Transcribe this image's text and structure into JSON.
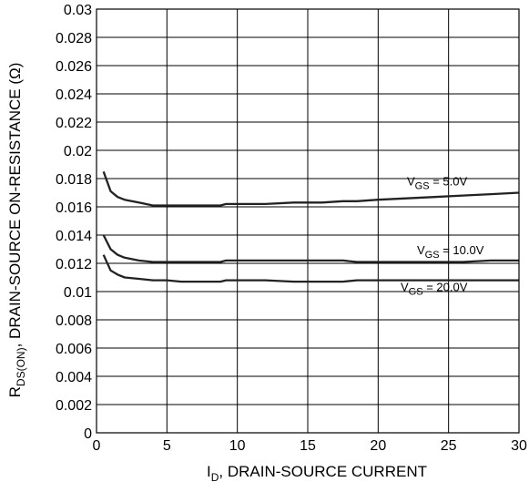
{
  "chart_data": {
    "type": "line",
    "xlabel": {
      "main": "I",
      "sub": "D",
      "rest": ", DRAIN-SOURCE CURRENT"
    },
    "ylabel": {
      "main": "R",
      "sub": "DS(ON)",
      "rest": ",  DRAIN-SOURCE ON-RESISTANCE (Ω)"
    },
    "xlim": [
      0,
      30
    ],
    "ylim": [
      0,
      0.03
    ],
    "x_ticks": [
      0,
      5,
      10,
      15,
      20,
      25,
      30
    ],
    "x_tick_labels": [
      "0",
      "5",
      "10",
      "15",
      "20",
      "25",
      "30"
    ],
    "y_ticks": [
      0,
      0.002,
      0.004,
      0.006,
      0.008,
      0.01,
      0.012,
      0.014,
      0.016,
      0.018,
      0.02,
      0.022,
      0.024,
      0.026,
      0.028,
      0.03
    ],
    "y_tick_labels": [
      "0",
      "0.002",
      "0.004",
      "0.006",
      "0.008",
      "0.01",
      "0.012",
      "0.014",
      "0.016",
      "0.018",
      "0.02",
      "0.022",
      "0.024",
      "0.026",
      "0.028",
      "0.03"
    ],
    "grid": true,
    "line_color": "#222222",
    "series": [
      {
        "name": "V_GS = 5.0V",
        "label_main": "V",
        "label_sub": "GS",
        "label_rest": " = 5.0V",
        "x": [
          0.5,
          1.0,
          1.5,
          2.0,
          3.0,
          4.0,
          4.5,
          5,
          6,
          7,
          8,
          8.8,
          9.2,
          10,
          12,
          14,
          16,
          17.5,
          18.5,
          20,
          22,
          24,
          26,
          28,
          30
        ],
        "y": [
          0.0185,
          0.0171,
          0.0167,
          0.0165,
          0.0163,
          0.0161,
          0.0161,
          0.0161,
          0.0161,
          0.0161,
          0.0161,
          0.0161,
          0.0162,
          0.0162,
          0.0162,
          0.0163,
          0.0163,
          0.0164,
          0.0164,
          0.0165,
          0.0166,
          0.0167,
          0.0168,
          0.0169,
          0.017
        ]
      },
      {
        "name": "V_GS = 10.0V",
        "label_main": "V",
        "label_sub": "GS",
        "label_rest": " = 10.0V",
        "x": [
          0.5,
          1.0,
          1.5,
          2.0,
          3.0,
          4.0,
          4.5,
          5,
          6,
          7,
          8,
          8.8,
          9.2,
          10,
          12,
          14,
          16,
          17.5,
          18.5,
          20,
          22,
          24,
          26,
          28,
          30
        ],
        "y": [
          0.014,
          0.013,
          0.0126,
          0.0124,
          0.0122,
          0.0121,
          0.0121,
          0.0121,
          0.0121,
          0.0121,
          0.0121,
          0.0121,
          0.0122,
          0.0122,
          0.0122,
          0.0122,
          0.0122,
          0.0122,
          0.0121,
          0.0121,
          0.0121,
          0.0121,
          0.0121,
          0.0122,
          0.0122
        ]
      },
      {
        "name": "V_GS = 20.0V",
        "label_main": "V",
        "label_sub": "GS",
        "label_rest": " = 20.0V",
        "x": [
          0.5,
          1.0,
          1.5,
          2.0,
          3.0,
          4.0,
          4.5,
          5,
          6,
          7,
          8,
          8.8,
          9.2,
          10,
          12,
          14,
          16,
          17.5,
          18.5,
          20,
          22,
          24,
          26,
          28,
          30
        ],
        "y": [
          0.0126,
          0.0115,
          0.0112,
          0.011,
          0.0109,
          0.0108,
          0.0108,
          0.0108,
          0.0107,
          0.0107,
          0.0107,
          0.0107,
          0.0108,
          0.0108,
          0.0108,
          0.0107,
          0.0107,
          0.0107,
          0.0108,
          0.0108,
          0.0108,
          0.0108,
          0.0108,
          0.0108,
          0.0108
        ]
      }
    ]
  }
}
